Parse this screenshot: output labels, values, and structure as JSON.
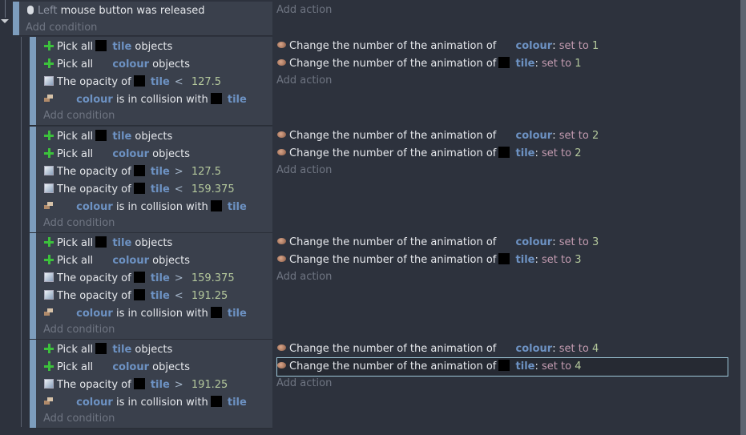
{
  "root_event": {
    "condition": {
      "icon": "mouse-icon",
      "button": "Left",
      "text": "mouse button was released"
    },
    "add_condition": "Add condition",
    "add_action": "Add action"
  },
  "sub_events": [
    {
      "conditions": [
        {
          "icon": "plus-icon",
          "parts": [
            {
              "t": "Pick all",
              "c": ""
            },
            {
              "t": "",
              "c": "thumb"
            },
            {
              "t": "tile",
              "c": "obj"
            },
            {
              "t": "objects",
              "c": ""
            }
          ]
        },
        {
          "icon": "plus-icon",
          "parts": [
            {
              "t": "Pick all",
              "c": ""
            },
            {
              "t": "",
              "c": "gap"
            },
            {
              "t": "colour",
              "c": "obj"
            },
            {
              "t": "objects",
              "c": ""
            }
          ]
        },
        {
          "icon": "opacity-icon",
          "parts": [
            {
              "t": "The opacity of",
              "c": ""
            },
            {
              "t": "",
              "c": "thumb"
            },
            {
              "t": "tile",
              "c": "obj"
            },
            {
              "t": "<",
              "c": "op"
            },
            {
              "t": "127.5",
              "c": "num"
            }
          ]
        },
        {
          "icon": "collision-icon",
          "parts": [
            {
              "t": "",
              "c": "gap"
            },
            {
              "t": "colour",
              "c": "obj"
            },
            {
              "t": "is in collision with",
              "c": ""
            },
            {
              "t": "",
              "c": "thumb"
            },
            {
              "t": "tile",
              "c": "obj"
            }
          ]
        }
      ],
      "actions": [
        {
          "icon": "animation-icon",
          "parts": [
            {
              "t": "Change the number of the animation of",
              "c": ""
            },
            {
              "t": "",
              "c": "gap"
            },
            {
              "t": "colour",
              "c": "obj"
            },
            {
              "t": ":",
              "c": ""
            },
            {
              "t": "set to",
              "c": "setto"
            },
            {
              "t": "1",
              "c": "num"
            }
          ]
        },
        {
          "icon": "animation-icon",
          "parts": [
            {
              "t": "Change the number of the animation of",
              "c": ""
            },
            {
              "t": "",
              "c": "thumb"
            },
            {
              "t": "tile",
              "c": "obj"
            },
            {
              "t": ":",
              "c": ""
            },
            {
              "t": "set to",
              "c": "setto"
            },
            {
              "t": "1",
              "c": "num"
            }
          ]
        }
      ]
    },
    {
      "conditions": [
        {
          "icon": "plus-icon",
          "parts": [
            {
              "t": "Pick all",
              "c": ""
            },
            {
              "t": "",
              "c": "thumb"
            },
            {
              "t": "tile",
              "c": "obj"
            },
            {
              "t": "objects",
              "c": ""
            }
          ]
        },
        {
          "icon": "plus-icon",
          "parts": [
            {
              "t": "Pick all",
              "c": ""
            },
            {
              "t": "",
              "c": "gap"
            },
            {
              "t": "colour",
              "c": "obj"
            },
            {
              "t": "objects",
              "c": ""
            }
          ]
        },
        {
          "icon": "opacity-icon",
          "parts": [
            {
              "t": "The opacity of",
              "c": ""
            },
            {
              "t": "",
              "c": "thumb"
            },
            {
              "t": "tile",
              "c": "obj"
            },
            {
              "t": ">",
              "c": "op"
            },
            {
              "t": "127.5",
              "c": "num"
            }
          ]
        },
        {
          "icon": "opacity-icon",
          "parts": [
            {
              "t": "The opacity of",
              "c": ""
            },
            {
              "t": "",
              "c": "thumb"
            },
            {
              "t": "tile",
              "c": "obj"
            },
            {
              "t": "<",
              "c": "op"
            },
            {
              "t": "159.375",
              "c": "num"
            }
          ]
        },
        {
          "icon": "collision-icon",
          "parts": [
            {
              "t": "",
              "c": "gap"
            },
            {
              "t": "colour",
              "c": "obj"
            },
            {
              "t": "is in collision with",
              "c": ""
            },
            {
              "t": "",
              "c": "thumb"
            },
            {
              "t": "tile",
              "c": "obj"
            }
          ]
        }
      ],
      "actions": [
        {
          "icon": "animation-icon",
          "parts": [
            {
              "t": "Change the number of the animation of",
              "c": ""
            },
            {
              "t": "",
              "c": "gap"
            },
            {
              "t": "colour",
              "c": "obj"
            },
            {
              "t": ":",
              "c": ""
            },
            {
              "t": "set to",
              "c": "setto"
            },
            {
              "t": "2",
              "c": "num"
            }
          ]
        },
        {
          "icon": "animation-icon",
          "parts": [
            {
              "t": "Change the number of the animation of",
              "c": ""
            },
            {
              "t": "",
              "c": "thumb"
            },
            {
              "t": "tile",
              "c": "obj"
            },
            {
              "t": ":",
              "c": ""
            },
            {
              "t": "set to",
              "c": "setto"
            },
            {
              "t": "2",
              "c": "num"
            }
          ]
        }
      ]
    },
    {
      "conditions": [
        {
          "icon": "plus-icon",
          "parts": [
            {
              "t": "Pick all",
              "c": ""
            },
            {
              "t": "",
              "c": "thumb"
            },
            {
              "t": "tile",
              "c": "obj"
            },
            {
              "t": "objects",
              "c": ""
            }
          ]
        },
        {
          "icon": "plus-icon",
          "parts": [
            {
              "t": "Pick all",
              "c": ""
            },
            {
              "t": "",
              "c": "gap"
            },
            {
              "t": "colour",
              "c": "obj"
            },
            {
              "t": "objects",
              "c": ""
            }
          ]
        },
        {
          "icon": "opacity-icon",
          "parts": [
            {
              "t": "The opacity of",
              "c": ""
            },
            {
              "t": "",
              "c": "thumb"
            },
            {
              "t": "tile",
              "c": "obj"
            },
            {
              "t": ">",
              "c": "op"
            },
            {
              "t": "159.375",
              "c": "num"
            }
          ]
        },
        {
          "icon": "opacity-icon",
          "parts": [
            {
              "t": "The opacity of",
              "c": ""
            },
            {
              "t": "",
              "c": "thumb"
            },
            {
              "t": "tile",
              "c": "obj"
            },
            {
              "t": "<",
              "c": "op"
            },
            {
              "t": "191.25",
              "c": "num"
            }
          ]
        },
        {
          "icon": "collision-icon",
          "parts": [
            {
              "t": "",
              "c": "gap"
            },
            {
              "t": "colour",
              "c": "obj"
            },
            {
              "t": "is in collision with",
              "c": ""
            },
            {
              "t": "",
              "c": "thumb"
            },
            {
              "t": "tile",
              "c": "obj"
            }
          ]
        }
      ],
      "actions": [
        {
          "icon": "animation-icon",
          "parts": [
            {
              "t": "Change the number of the animation of",
              "c": ""
            },
            {
              "t": "",
              "c": "gap"
            },
            {
              "t": "colour",
              "c": "obj"
            },
            {
              "t": ":",
              "c": ""
            },
            {
              "t": "set to",
              "c": "setto"
            },
            {
              "t": "3",
              "c": "num"
            }
          ]
        },
        {
          "icon": "animation-icon",
          "parts": [
            {
              "t": "Change the number of the animation of",
              "c": ""
            },
            {
              "t": "",
              "c": "thumb"
            },
            {
              "t": "tile",
              "c": "obj"
            },
            {
              "t": ":",
              "c": ""
            },
            {
              "t": "set to",
              "c": "setto"
            },
            {
              "t": "3",
              "c": "num"
            }
          ]
        }
      ]
    },
    {
      "conditions": [
        {
          "icon": "plus-icon",
          "parts": [
            {
              "t": "Pick all",
              "c": ""
            },
            {
              "t": "",
              "c": "thumb"
            },
            {
              "t": "tile",
              "c": "obj"
            },
            {
              "t": "objects",
              "c": ""
            }
          ]
        },
        {
          "icon": "plus-icon",
          "parts": [
            {
              "t": "Pick all",
              "c": ""
            },
            {
              "t": "",
              "c": "gap"
            },
            {
              "t": "colour",
              "c": "obj"
            },
            {
              "t": "objects",
              "c": ""
            }
          ]
        },
        {
          "icon": "opacity-icon",
          "parts": [
            {
              "t": "The opacity of",
              "c": ""
            },
            {
              "t": "",
              "c": "thumb"
            },
            {
              "t": "tile",
              "c": "obj"
            },
            {
              "t": ">",
              "c": "op"
            },
            {
              "t": "191.25",
              "c": "num"
            }
          ]
        },
        {
          "icon": "collision-icon",
          "parts": [
            {
              "t": "",
              "c": "gap"
            },
            {
              "t": "colour",
              "c": "obj"
            },
            {
              "t": "is in collision with",
              "c": ""
            },
            {
              "t": "",
              "c": "thumb"
            },
            {
              "t": "tile",
              "c": "obj"
            }
          ]
        }
      ],
      "actions": [
        {
          "icon": "animation-icon",
          "parts": [
            {
              "t": "Change the number of the animation of",
              "c": ""
            },
            {
              "t": "",
              "c": "gap"
            },
            {
              "t": "colour",
              "c": "obj"
            },
            {
              "t": ":",
              "c": ""
            },
            {
              "t": "set to",
              "c": "setto"
            },
            {
              "t": "4",
              "c": "num"
            }
          ]
        },
        {
          "icon": "animation-icon",
          "selected": true,
          "parts": [
            {
              "t": "Change the number of the animation of",
              "c": ""
            },
            {
              "t": "",
              "c": "thumb"
            },
            {
              "t": "tile",
              "c": "obj"
            },
            {
              "t": ":",
              "c": ""
            },
            {
              "t": "set to",
              "c": "setto"
            },
            {
              "t": "4",
              "c": "num"
            }
          ]
        }
      ]
    }
  ],
  "colors": {
    "background": "#2d323d",
    "condition_panel": "#3a404c",
    "event_bar": "#7d9dbd",
    "object_name": "#6d92c3",
    "number": "#b4c89c",
    "selection_outline": "#9dc7d8"
  }
}
